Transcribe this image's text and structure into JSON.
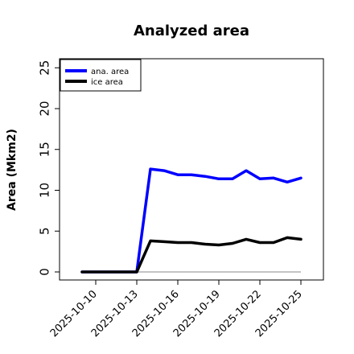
{
  "chart_data": {
    "type": "line",
    "title": "Analyzed area",
    "ylabel": "Area (Mkm2)",
    "xlabel": "",
    "ylim": [
      0,
      26
    ],
    "yticks": [
      0,
      5,
      10,
      15,
      20,
      25
    ],
    "x": [
      "2025-10-09",
      "2025-10-10",
      "2025-10-11",
      "2025-10-12",
      "2025-10-13",
      "2025-10-14",
      "2025-10-15",
      "2025-10-16",
      "2025-10-17",
      "2025-10-18",
      "2025-10-19",
      "2025-10-20",
      "2025-10-21",
      "2025-10-22",
      "2025-10-23",
      "2025-10-24",
      "2025-10-25"
    ],
    "xticks": [
      "2025-10-10",
      "2025-10-13",
      "2025-10-16",
      "2025-10-19",
      "2025-10-22",
      "2025-10-25"
    ],
    "highlight_tick": "2025-10-16",
    "highlight_color": "#228b22",
    "grid": false,
    "legend_position": "top-left",
    "series": [
      {
        "name": "ana. area",
        "color": "#0000ff",
        "values": [
          0,
          0,
          0,
          0,
          0,
          12.6,
          12.4,
          11.9,
          11.9,
          11.7,
          11.4,
          11.4,
          12.4,
          11.4,
          11.5,
          11.0,
          11.5
        ]
      },
      {
        "name": "ice area",
        "color": "#000000",
        "values": [
          0,
          0,
          0,
          0,
          0,
          3.8,
          3.7,
          3.6,
          3.6,
          3.4,
          3.3,
          3.5,
          4.0,
          3.6,
          3.6,
          4.2,
          4.0
        ]
      }
    ]
  }
}
